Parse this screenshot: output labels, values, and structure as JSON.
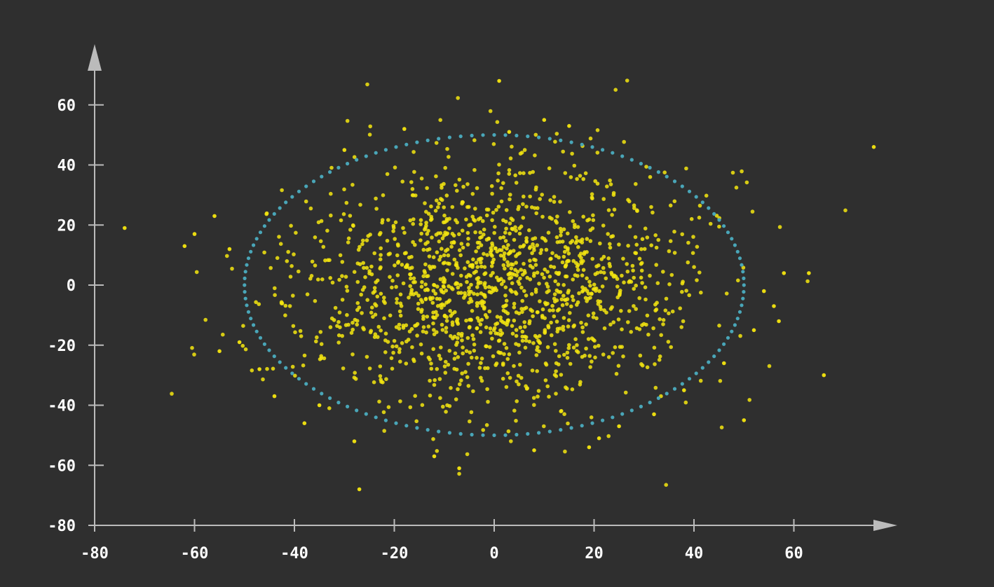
{
  "chart_data": {
    "type": "scatter",
    "title": "",
    "xlabel": "",
    "ylabel": "",
    "xlim": [
      -80,
      80
    ],
    "ylim": [
      -80,
      72
    ],
    "x_ticks": [
      -80,
      -60,
      -40,
      -20,
      0,
      20,
      40,
      60
    ],
    "y_ticks": [
      -80,
      -60,
      -40,
      -20,
      0,
      20,
      40,
      60
    ],
    "x_tick_labels": [
      "-80",
      "-60",
      "-40",
      "-20",
      "0",
      "20",
      "40",
      "60"
    ],
    "y_tick_labels": [
      "-80",
      "-60",
      "-40",
      "-20",
      "0",
      "20",
      "40",
      "60"
    ],
    "grid": false,
    "legend": "none",
    "series": [
      {
        "kind": "points",
        "color": "#f5e60f",
        "distribution": "gaussian",
        "center": [
          0,
          0
        ],
        "sigma": [
          20,
          20
        ],
        "count": 1500,
        "x": [
          1,
          76,
          -74,
          66,
          -27,
          -7,
          63,
          58,
          50,
          -62,
          -60,
          -56,
          -55,
          -53,
          -51,
          -47,
          -44,
          -38,
          -35,
          -28,
          -12,
          8,
          19,
          21,
          25,
          32,
          38,
          46,
          52,
          54,
          56,
          57,
          10,
          15,
          3,
          -18,
          -30
        ],
        "y": [
          68,
          46,
          19,
          -30,
          -68,
          -61,
          4,
          4,
          -45,
          13,
          17,
          23,
          -22,
          12,
          -19,
          -28,
          -37,
          -46,
          -40,
          -52,
          -57,
          -55,
          -54,
          -51,
          -47,
          -43,
          -35,
          -26,
          -15,
          -2,
          -7,
          -12,
          55,
          53,
          51,
          52,
          45
        ]
      },
      {
        "kind": "ellipse",
        "color": "#49a6b8",
        "center": [
          0,
          0
        ],
        "radius_x": 50,
        "radius_y": 50
      }
    ]
  },
  "colors": {
    "background": "#2f2f2f",
    "axis": "#bbbbbb",
    "tick_label": "#ffffff",
    "points": "#f5e60f",
    "ellipse": "#49a6b8"
  }
}
